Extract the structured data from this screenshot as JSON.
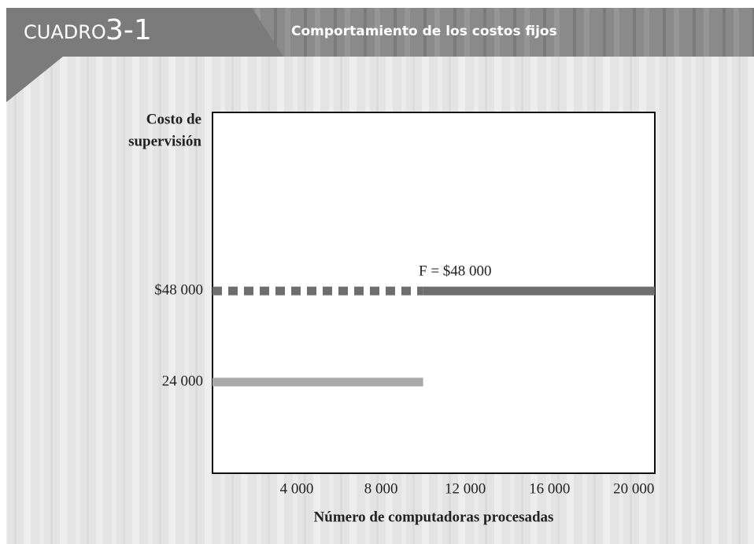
{
  "chart_data": {
    "type": "line",
    "header": {
      "label": "CUADRO",
      "number": "3-1"
    },
    "title": "Comportamiento de los costos fijos",
    "ylabel": [
      "Costo de",
      "supervisión"
    ],
    "xlabel": "Número de computadoras procesadas",
    "annotation": "F = $48 000",
    "xlim": [
      0,
      21000
    ],
    "ylim": [
      0,
      95000
    ],
    "xticks": [
      {
        "value": 4000,
        "label": "4 000"
      },
      {
        "value": 8000,
        "label": "8 000"
      },
      {
        "value": 12000,
        "label": "12 000"
      },
      {
        "value": 16000,
        "label": "16 000"
      },
      {
        "value": 20000,
        "label": "20 000"
      }
    ],
    "yticks": [
      {
        "value": 24000,
        "label": "24 000"
      },
      {
        "value": 48000,
        "label": "$48 000"
      }
    ],
    "series": [
      {
        "color": "#6e6e6e",
        "dashed": true,
        "x": [
          0,
          10000
        ],
        "values": [
          48000,
          48000
        ]
      },
      {
        "color": "#6e6e6e",
        "x": [
          10000,
          21000
        ],
        "values": [
          48000,
          48000
        ]
      },
      {
        "color": "#a9a9a9",
        "x": [
          0,
          10000
        ],
        "values": [
          24000,
          24000
        ]
      }
    ]
  }
}
